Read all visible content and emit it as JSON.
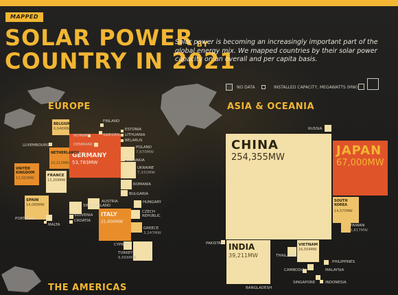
{
  "badge": "MAPPED",
  "title_line1": "SOLAR POWER",
  "title_by": "BY",
  "title_line2": "COUNTRY IN 2021",
  "description": "Solar power is becoming an increasingly important part of the global energy mix. We mapped countries by their solar power capacity on an overall and per capita basis.",
  "legend": {
    "no_data": "NO DATA",
    "installed": "INSTALLED CAPACITY, MEGAWATTS (MW)"
  },
  "regions": {
    "europe": "EUROPE",
    "asia": "ASIA & OCEANIA",
    "americas": "THE AMERICAS"
  },
  "europe": {
    "germany": {
      "name": "GERMANY",
      "value": "53,783MW"
    },
    "italy": {
      "name": "ITALY",
      "value": "21,600MW"
    },
    "spain": {
      "name": "SPAIN",
      "value": "14,089MW"
    },
    "france": {
      "name": "FRANCE",
      "value": "13,209MW"
    },
    "uk": {
      "name": "UNITED KINGDOM",
      "value": "13,563MW"
    },
    "netherlands": {
      "name": "NETHERLANDS",
      "value": "10,213MW"
    },
    "belgium": {
      "name": "BELGIUM",
      "value": "6,646MW"
    },
    "poland": {
      "name": "POLAND",
      "value": "7,670MW"
    },
    "ukraine": {
      "name": "UKRAINE",
      "value": "7,331MW"
    },
    "greece": {
      "name": "GREECE",
      "value": "3,247MW"
    },
    "turkey": {
      "name": "TURKEY",
      "value": "8,668MW"
    },
    "finland": "FINLAND",
    "estonia": "ESTONIA",
    "norway": "NORWAY",
    "sweden": "SWEDEN",
    "lithuania": "LITHUANIA",
    "belarus": "BELARUS",
    "denmark": "DENMARK",
    "luxembourg": "LUXEMBOURG",
    "slovakia": "SLOVAKIA",
    "romania": "ROMANIA",
    "bulgaria": "BULGARIA",
    "hungary": "HUNGARY",
    "austria": "AUSTRIA",
    "switzerland": "SWITZERLAND",
    "portugal": "PORTUGAL",
    "slovenia": "SLOVENIA",
    "croatia": "CROATIA",
    "malta": "MALTA",
    "czech": "CZECH REPUBLIC",
    "cyprus": "CYPRUS"
  },
  "asia": {
    "china": {
      "name": "CHINA",
      "value": "254,355MW"
    },
    "japan": {
      "name": "JAPAN",
      "value": "67,000MW"
    },
    "india": {
      "name": "INDIA",
      "value": "39,211MW"
    },
    "south_korea": {
      "name": "SOUTH KOREA",
      "value": "14,575MW"
    },
    "vietnam": {
      "name": "VIETNAM",
      "value": "16,504MW"
    },
    "taiwan": {
      "name": "TAIWAN",
      "value": "5,817MW"
    },
    "russia": "RUSSIA",
    "pakistan": "PAKISTAN",
    "thailand": "THAILAND",
    "philippines": "PHILIPPINES",
    "cambodia": "CAMBODIA",
    "malaysia": "MALAYSIA",
    "singapore": "SINGAPORE",
    "indonesia": "INDONESIA",
    "bangladesh": "BANGLADESH"
  },
  "colors": {
    "accent": "#f2b632",
    "light": "#f3dfa8",
    "mid": "#efc36a",
    "orange": "#e88d2a",
    "red": "#e0542a",
    "background": "#1f1e1b"
  }
}
